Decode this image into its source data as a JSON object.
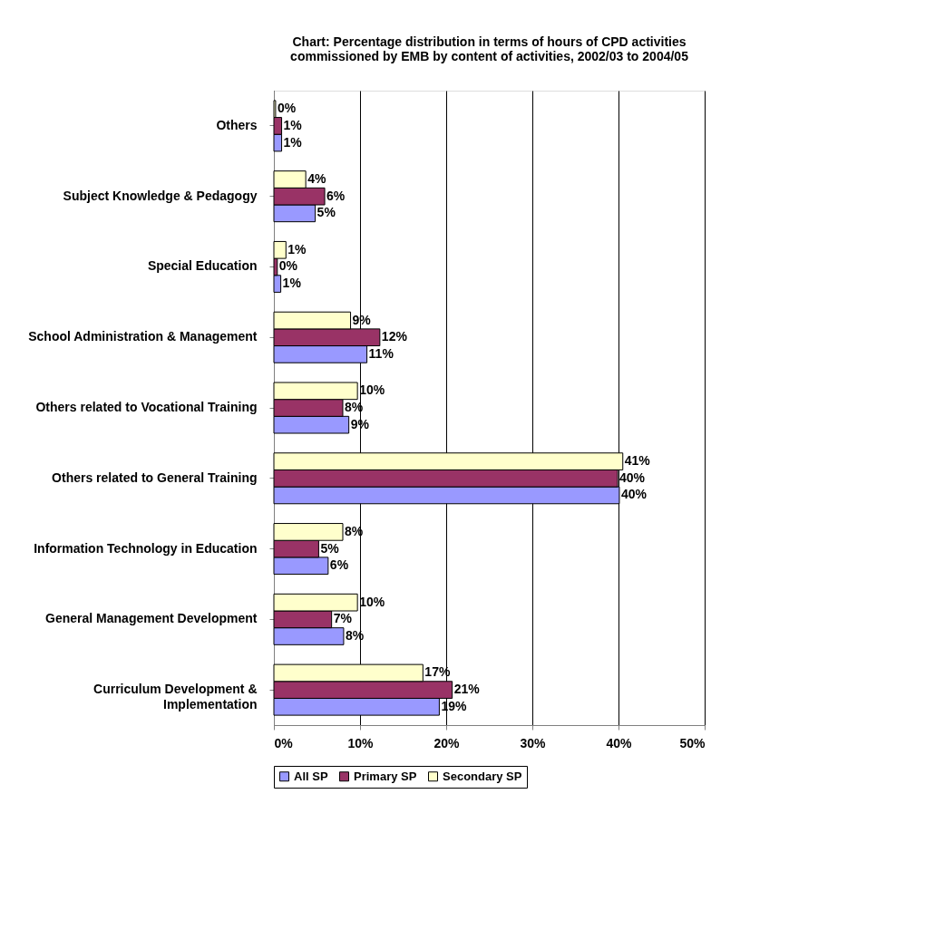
{
  "chart_data": {
    "type": "bar",
    "orientation": "horizontal",
    "title": [
      "Chart: Percentage distribution in terms of hours of CPD activities",
      "commissioned by EMB by content of activities, 2002/03 to 2004/05"
    ],
    "categories": [
      "Others",
      "Subject Knowledge & Pedagogy",
      "Special Education",
      "School Administration & Management",
      "Others related to Vocational Training",
      "Others related to General Training",
      "Information Technology in Education",
      "General Management Development",
      "Curriculum Development & Implementation"
    ],
    "series": [
      {
        "name": "All SP",
        "color": "#9999ff",
        "values": [
          0.9,
          4.8,
          0.8,
          10.8,
          8.7,
          40.1,
          6.3,
          8.1,
          19.2
        ],
        "value_labels": [
          "1%",
          "5%",
          "1%",
          "11%",
          "9%",
          "40%",
          "6%",
          "8%",
          "19%"
        ]
      },
      {
        "name": "Primary SP",
        "color": "#993366",
        "values": [
          0.9,
          5.9,
          0.4,
          12.3,
          8.0,
          39.9,
          5.2,
          6.7,
          20.7
        ],
        "value_labels": [
          "1%",
          "6%",
          "0%",
          "12%",
          "8%",
          "40%",
          "5%",
          "7%",
          "21%"
        ]
      },
      {
        "name": "Secondary SP",
        "color": "#ffffcc",
        "values": [
          0.2,
          3.7,
          1.4,
          8.9,
          9.7,
          40.5,
          8.0,
          9.7,
          17.3
        ],
        "value_labels": [
          "0%",
          "4%",
          "1%",
          "9%",
          "10%",
          "41%",
          "8%",
          "10%",
          "17%"
        ]
      }
    ],
    "xlim": [
      0,
      50
    ],
    "xticks": [
      {
        "value": 0,
        "label": "0%"
      },
      {
        "value": 10,
        "label": "10%"
      },
      {
        "value": 20,
        "label": "20%"
      },
      {
        "value": 30,
        "label": "30%"
      },
      {
        "value": 40,
        "label": "40%"
      },
      {
        "value": 50,
        "label": "50%"
      }
    ],
    "grid": "x",
    "legend": "bottom"
  }
}
